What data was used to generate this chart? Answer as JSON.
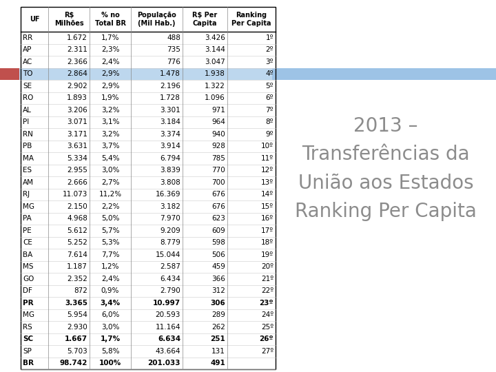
{
  "title_lines": [
    "2013 –",
    "Transferências da",
    "União aos Estados",
    "Ranking Per Capita"
  ],
  "title_color": "#8c8c8c",
  "col_headers": [
    "UF",
    "R$\nMilhões",
    "% no\nTotal BR",
    "População\n(Mil Hab.)",
    "R$ Per\nCapita",
    "Ranking\nPer Capita"
  ],
  "rows": [
    [
      "RR",
      "1.672",
      "1,7%",
      "488",
      "3.426",
      "1º",
      false,
      false
    ],
    [
      "AP",
      "2.311",
      "2,3%",
      "735",
      "3.144",
      "2º",
      false,
      false
    ],
    [
      "AC",
      "2.366",
      "2,4%",
      "776",
      "3.047",
      "3º",
      false,
      false
    ],
    [
      "TO",
      "2.864",
      "2,9%",
      "1.478",
      "1.938",
      "4º",
      true,
      false
    ],
    [
      "SE",
      "2.902",
      "2,9%",
      "2.196",
      "1.322",
      "5º",
      false,
      false
    ],
    [
      "RO",
      "1.893",
      "1,9%",
      "1.728",
      "1.096",
      "6º",
      false,
      false
    ],
    [
      "AL",
      "3.206",
      "3,2%",
      "3.301",
      "971",
      "7º",
      false,
      false
    ],
    [
      "PI",
      "3.071",
      "3,1%",
      "3.184",
      "964",
      "8º",
      false,
      false
    ],
    [
      "RN",
      "3.171",
      "3,2%",
      "3.374",
      "940",
      "9º",
      false,
      false
    ],
    [
      "PB",
      "3.631",
      "3,7%",
      "3.914",
      "928",
      "10º",
      false,
      false
    ],
    [
      "MA",
      "5.334",
      "5,4%",
      "6.794",
      "785",
      "11º",
      false,
      false
    ],
    [
      "ES",
      "2.955",
      "3,0%",
      "3.839",
      "770",
      "12º",
      false,
      false
    ],
    [
      "AM",
      "2.666",
      "2,7%",
      "3.808",
      "700",
      "13º",
      false,
      false
    ],
    [
      "RJ",
      "11.073",
      "11,2%",
      "16.369",
      "676",
      "14º",
      false,
      false
    ],
    [
      "MG",
      "2.150",
      "2,2%",
      "3.182",
      "676",
      "15º",
      false,
      false
    ],
    [
      "PA",
      "4.968",
      "5,0%",
      "7.970",
      "623",
      "16º",
      false,
      false
    ],
    [
      "PE",
      "5.612",
      "5,7%",
      "9.209",
      "609",
      "17º",
      false,
      false
    ],
    [
      "CE",
      "5.252",
      "5,3%",
      "8.779",
      "598",
      "18º",
      false,
      false
    ],
    [
      "BA",
      "7.614",
      "7,7%",
      "15.044",
      "506",
      "19º",
      false,
      false
    ],
    [
      "MS",
      "1.187",
      "1,2%",
      "2.587",
      "459",
      "20º",
      false,
      false
    ],
    [
      "GO",
      "2.352",
      "2,4%",
      "6.434",
      "366",
      "21º",
      false,
      false
    ],
    [
      "DF",
      "872",
      "0,9%",
      "2.790",
      "312",
      "22º",
      false,
      false
    ],
    [
      "PR",
      "3.365",
      "3,4%",
      "10.997",
      "306",
      "23º",
      false,
      true
    ],
    [
      "MG",
      "5.954",
      "6,0%",
      "20.593",
      "289",
      "24º",
      false,
      false
    ],
    [
      "RS",
      "2.930",
      "3,0%",
      "11.164",
      "262",
      "25º",
      false,
      false
    ],
    [
      "SC",
      "1.667",
      "1,7%",
      "6.634",
      "251",
      "26º",
      false,
      true
    ],
    [
      "SP",
      "5.703",
      "5,8%",
      "43.664",
      "131",
      "27º",
      false,
      false
    ],
    [
      "BR",
      "98.742",
      "100%",
      "201.033",
      "491",
      "",
      false,
      true
    ]
  ],
  "bg_color": "#ffffff",
  "row_highlight_blue": "#bdd7ee",
  "orange_bar_color": "#c0504d",
  "header_bar_color": "#9dc3e6",
  "title_fontsize": 20
}
